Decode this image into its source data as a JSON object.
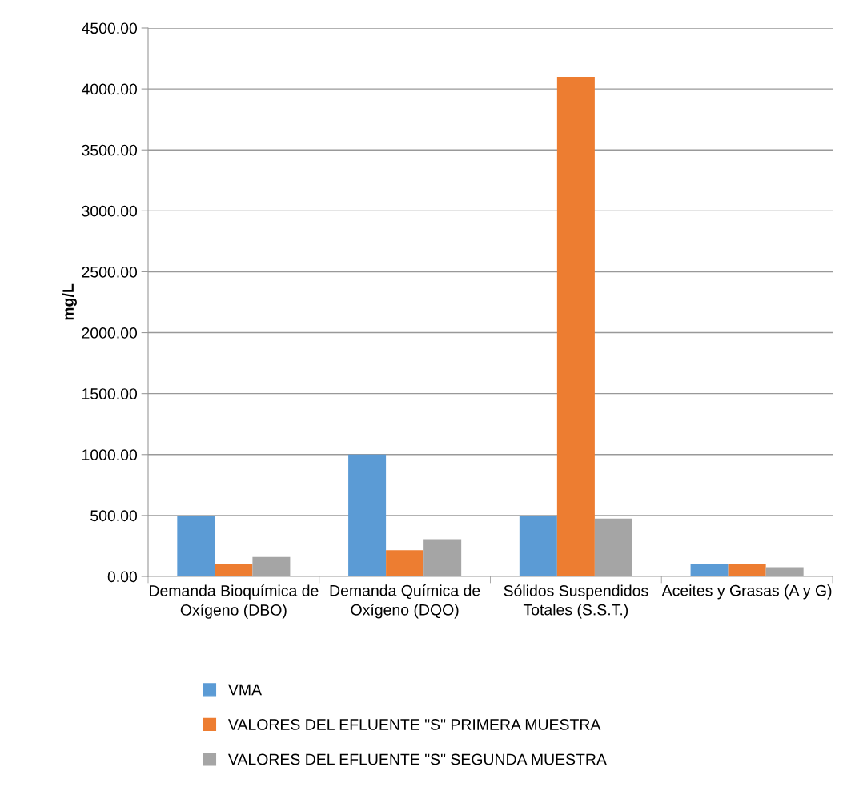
{
  "chart_data": {
    "type": "bar",
    "ylabel": "mg/L",
    "categories": [
      "Demanda Bioquímica de Oxígeno (DBO)",
      "Demanda Química de Oxígeno (DQO)",
      "Sólidos Suspendidos Totales (S.S.T.)",
      "Aceites y Grasas (A y G)"
    ],
    "series": [
      {
        "name": "VMA",
        "color": "#5b9bd5",
        "values": [
          500,
          1000,
          500,
          100
        ]
      },
      {
        "name": "VALORES DEL EFLUENTE \"S\" PRIMERA MUESTRA",
        "color": "#ed7d31",
        "values": [
          105,
          215,
          4100,
          105
        ]
      },
      {
        "name": "VALORES DEL EFLUENTE \"S\" SEGUNDA MUESTRA",
        "color": "#a5a5a5",
        "values": [
          160,
          305,
          475,
          75
        ]
      }
    ],
    "ylim": [
      0,
      4500
    ],
    "yticks": [
      {
        "value": 0,
        "label": "0.00"
      },
      {
        "value": 500,
        "label": "500.00"
      },
      {
        "value": 1000,
        "label": "1000.00"
      },
      {
        "value": 1500,
        "label": "1500.00"
      },
      {
        "value": 2000,
        "label": "2000.00"
      },
      {
        "value": 2500,
        "label": "2500.00"
      },
      {
        "value": 3000,
        "label": "3000.00"
      },
      {
        "value": 3500,
        "label": "3500.00"
      },
      {
        "value": 4000,
        "label": "4000.00"
      },
      {
        "value": 4500,
        "label": "4500.00"
      }
    ],
    "grid": "y",
    "legend": "bottom"
  }
}
